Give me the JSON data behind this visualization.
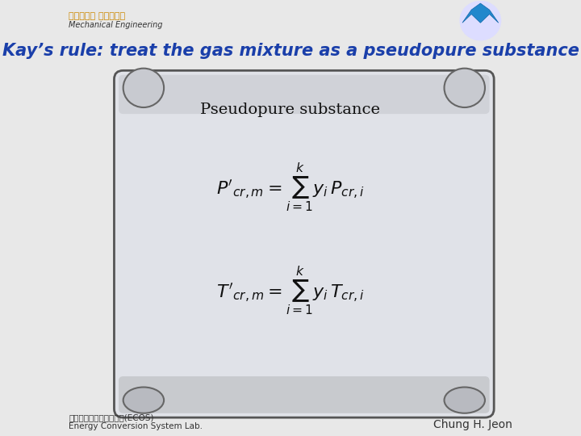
{
  "background_color": "#f0f0f0",
  "slide_bg": "#e8e8e8",
  "title": "Kay’s rule: treat the gas mixture as a pseudopure substance",
  "title_color": "#1a3faa",
  "title_fontsize": 15,
  "scroll_bg": "#e8e8ee",
  "scroll_edge": "#888888",
  "label_text": "Pseudopure substance",
  "eq1": "P'_{cr,m} = \\\\sum_{i=1}^{k} y_i \\\\, P_{cr,i}",
  "eq2": "T'_{cr,m} = \\\\sum_{i=1}^{k} y_i \\\\, T_{cr,i}",
  "footer_left1": "에너지변환시스템연구실(ECOS)",
  "footer_left2": "Energy Conversion System Lab.",
  "footer_right": "Chung H. Jeon",
  "footer_color": "#333333",
  "header_text1": "부산대학교 기계공학부",
  "header_text2": "Mechanical Engineering",
  "header_color": "#cc8800"
}
